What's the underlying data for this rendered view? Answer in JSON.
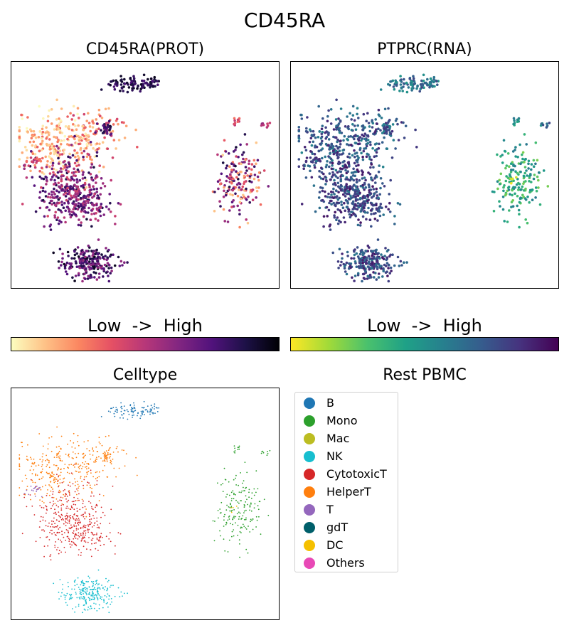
{
  "figure_title": "CD45RA",
  "panels": {
    "prot": {
      "title": "CD45RA(PROT)",
      "colorbar_label": "Low  ->  High",
      "colormap": "magma_r"
    },
    "rna": {
      "title": "PTPRC(RNA)",
      "colorbar_label": "Low  ->  High",
      "colormap": "viridis_r"
    },
    "celltype": {
      "title": "Celltype"
    },
    "legend_panel": {
      "title": "Rest PBMC"
    }
  },
  "colormaps": {
    "magma_r": [
      "#fcfdbf",
      "#fec287",
      "#fb8761",
      "#e55064",
      "#b73779",
      "#822681",
      "#51127c",
      "#1d1147",
      "#000004"
    ],
    "viridis_r": [
      "#fde725",
      "#a0da39",
      "#4ac16d",
      "#1fa187",
      "#277f8e",
      "#365c8d",
      "#46327e",
      "#440154"
    ]
  },
  "chart_data": {
    "type": "scatter",
    "series": [
      {
        "name": "B",
        "color": "#1f77b4"
      },
      {
        "name": "Mono",
        "color": "#2ca02c"
      },
      {
        "name": "Mac",
        "color": "#bcbd22"
      },
      {
        "name": "NK",
        "color": "#17becf"
      },
      {
        "name": "CytotoxicT",
        "color": "#d62728"
      },
      {
        "name": "HelperT",
        "color": "#ff7f0e"
      },
      {
        "name": "T",
        "color": "#9467bd"
      },
      {
        "name": "gdT",
        "color": "#005f6a"
      },
      {
        "name": "DC",
        "color": "#f5c000"
      },
      {
        "name": "Others",
        "color": "#e849b6"
      }
    ],
    "legend_placement": "upper-left",
    "grid": false,
    "xlim": [
      0,
      1
    ],
    "ylim": [
      0,
      1
    ]
  }
}
